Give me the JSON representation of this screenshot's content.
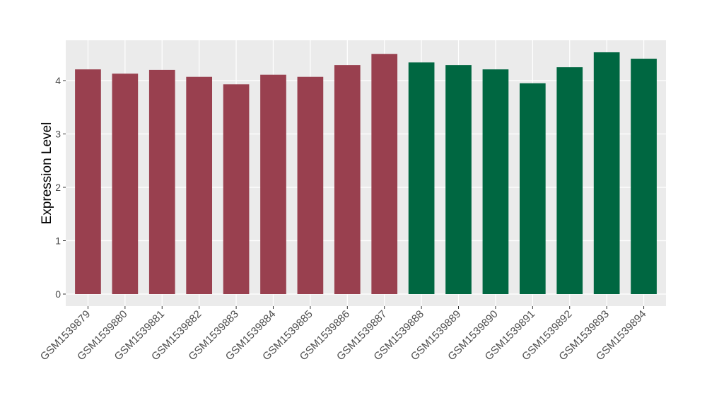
{
  "chart_data": {
    "type": "bar",
    "y_label": "Expression Level",
    "categories": [
      "GSM1539879",
      "GSM1539880",
      "GSM1539881",
      "GSM1539882",
      "GSM1539883",
      "GSM1539884",
      "GSM1539885",
      "GSM1539886",
      "GSM1539887",
      "GSM1539888",
      "GSM1539889",
      "GSM1539890",
      "GSM1539891",
      "GSM1539892",
      "GSM1539893",
      "GSM1539894"
    ],
    "values": [
      4.21,
      4.13,
      4.2,
      4.07,
      3.93,
      4.11,
      4.07,
      4.29,
      4.5,
      4.34,
      4.29,
      4.21,
      3.95,
      4.25,
      4.53,
      4.41
    ],
    "colors": [
      "#99404f",
      "#99404f",
      "#99404f",
      "#99404f",
      "#99404f",
      "#99404f",
      "#99404f",
      "#99404f",
      "#99404f",
      "#006741",
      "#006741",
      "#006741",
      "#006741",
      "#006741",
      "#006741",
      "#006741"
    ],
    "ylim": [
      -0.225,
      4.755
    ],
    "yticks": [
      0,
      1,
      2,
      3,
      4
    ],
    "grid": true
  }
}
